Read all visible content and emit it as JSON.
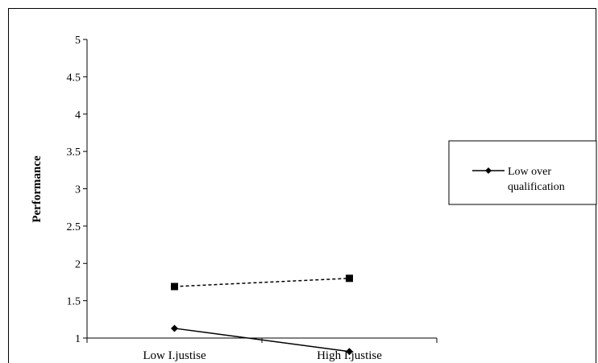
{
  "chart_data": {
    "type": "line",
    "categories": [
      "Low I.justise",
      "High I.justise"
    ],
    "ylabel": "Performance",
    "xlabel": "",
    "ylim": [
      1,
      5
    ],
    "yticks": [
      "1",
      "1.5",
      "2",
      "2.5",
      "3",
      "3.5",
      "4",
      "4.5",
      "5"
    ],
    "grid": false,
    "legend_position": "right",
    "series": [
      {
        "name": "Low over qualification",
        "values": [
          1.13,
          0.82
        ],
        "marker": "diamond",
        "line_style": "solid",
        "color": "#000000"
      },
      {
        "values": [
          1.69,
          1.8
        ],
        "marker": "square",
        "line_style": "dashed",
        "color": "#000000"
      }
    ],
    "legend": {
      "lines": [
        "Low over",
        "qualification"
      ]
    }
  }
}
